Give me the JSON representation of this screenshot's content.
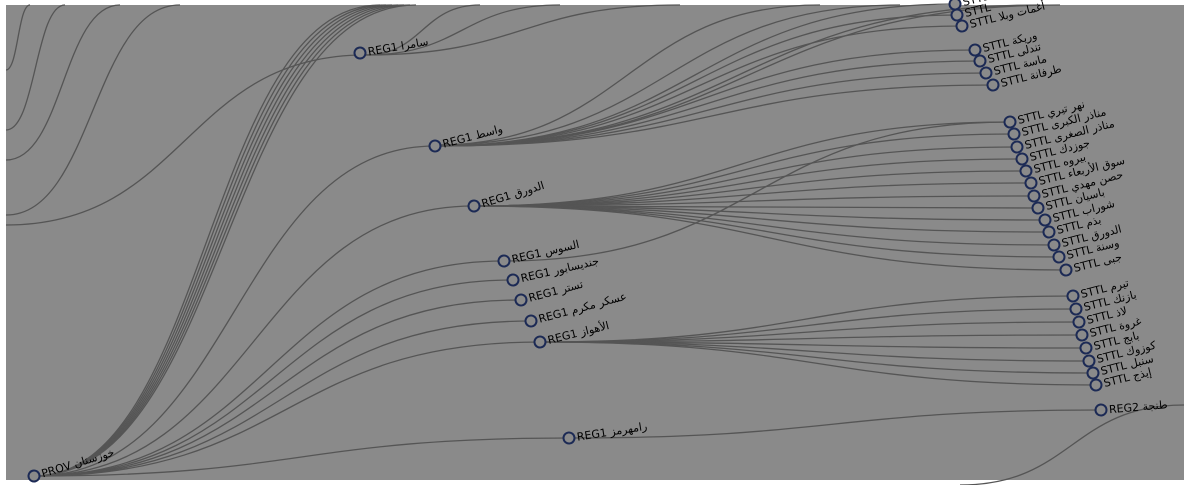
{
  "colors": {
    "background": "#8a8a8a",
    "link": "#555555",
    "node_stroke": "#1c2a55",
    "label": "#000000"
  },
  "root": {
    "type": "PROV",
    "name": "خوزستان"
  },
  "reg1_top": {
    "type": "REG1",
    "name": "سامرا"
  },
  "regions": [
    {
      "type": "REG1",
      "name": "واسط"
    },
    {
      "type": "REG1",
      "name": "الدورق"
    },
    {
      "type": "REG1",
      "name": "السوس"
    },
    {
      "type": "REG1",
      "name": "جنديسابور"
    },
    {
      "type": "REG1",
      "name": "تستر"
    },
    {
      "type": "REG1",
      "name": "عسكر مكرم"
    },
    {
      "type": "REG1",
      "name": "الأهواز"
    },
    {
      "type": "REG1",
      "name": "رامهرمز"
    }
  ],
  "wasit_settlements": [
    {
      "type": "STTL",
      "name": ""
    },
    {
      "type": "STTL",
      "name": ""
    },
    {
      "type": "STTL",
      "name": "أغمات وبلا"
    },
    {
      "type": "STTL",
      "name": "وريكة"
    },
    {
      "type": "STTL",
      "name": "تندلى"
    },
    {
      "type": "STTL",
      "name": "ماسة"
    },
    {
      "type": "STTL",
      "name": "طرفانة"
    }
  ],
  "dawraq_settlements": [
    {
      "type": "STTL",
      "name": "نهر تيري"
    },
    {
      "type": "STTL",
      "name": "مناذر الكبرى"
    },
    {
      "type": "STTL",
      "name": "مناذر الصغرى"
    },
    {
      "type": "STTL",
      "name": "جوزدك"
    },
    {
      "type": "STTL",
      "name": "بيروه"
    },
    {
      "type": "STTL",
      "name": "سوق الأربعاء"
    },
    {
      "type": "STTL",
      "name": "حصن مهدي"
    },
    {
      "type": "STTL",
      "name": "باسيان"
    },
    {
      "type": "STTL",
      "name": "شوراب"
    },
    {
      "type": "STTL",
      "name": "بذم"
    },
    {
      "type": "STTL",
      "name": "الدورق"
    },
    {
      "type": "STTL",
      "name": "وسنة"
    },
    {
      "type": "STTL",
      "name": "جبى"
    }
  ],
  "ahwaz_settlements": [
    {
      "type": "STTL",
      "name": "تيرم"
    },
    {
      "type": "STTL",
      "name": "بازنك"
    },
    {
      "type": "STTL",
      "name": "لاذ"
    },
    {
      "type": "STTL",
      "name": "غروة"
    },
    {
      "type": "STTL",
      "name": "بابج"
    },
    {
      "type": "STTL",
      "name": "كوزوك"
    },
    {
      "type": "STTL",
      "name": "سنبل"
    },
    {
      "type": "STTL",
      "name": "إيذج"
    }
  ],
  "ramhormuz_child": {
    "type": "REG2",
    "name": "طنجة"
  }
}
